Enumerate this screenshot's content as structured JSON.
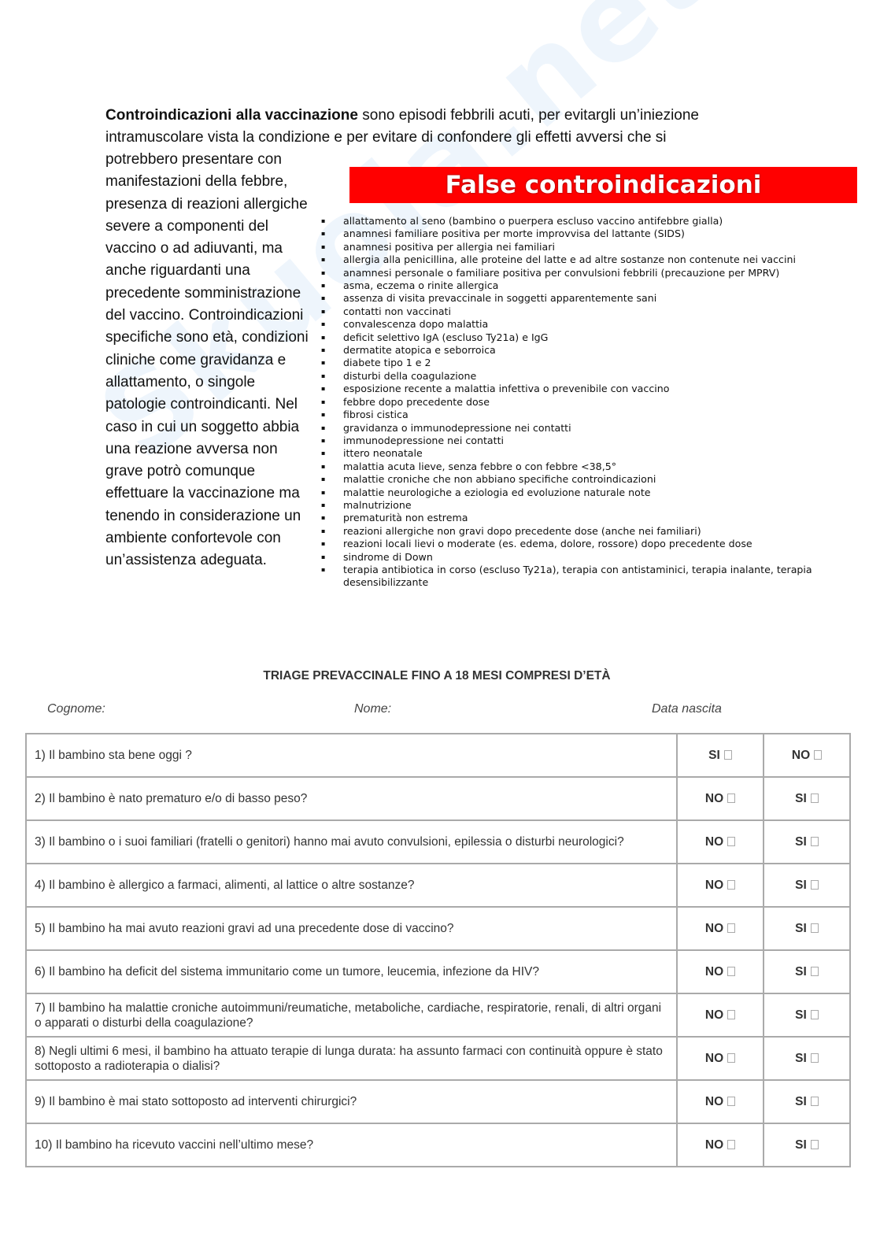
{
  "intro": {
    "bold": "Controindicazioni alla vaccinazione",
    "first_line_rest": " sono episodi febbrili acuti, per evitargli un’iniezione intramuscolare vista la condizione e per evitare di confondere gli effetti avversi che si",
    "column_text": "potrebbero presentare con manifestazioni della febbre, presenza di reazioni allergiche severe a componenti del vaccino o ad adiuvanti, ma anche riguardanti una precedente somministrazione del vaccino. Controindicazioni specifiche sono età, condizioni cliniche come gravidanza e allattamento, o singole patologie controindicanti. Nel caso in cui un soggetto abbia una reazione avversa non grave potrò comunque effettuare la vaccinazione ma tenendo in considerazione un ambiente confortevole con un’assistenza adeguata."
  },
  "false_contra": {
    "title": "False controindicazioni",
    "banner_color": "#ff0000",
    "items": [
      "allattamento al seno (bambino o puerpera escluso vaccino antifebbre gialla)",
      "anamnesi familiare positiva per morte improvvisa del lattante (SIDS)",
      "anamnesi positiva per allergia nei familiari",
      "allergia alla penicillina, alle proteine del latte e ad altre sostanze non contenute nei vaccini",
      "anamnesi personale o familiare positiva per convulsioni febbrili (precauzione per MPRV)",
      "asma, eczema o rinite allergica",
      "assenza di visita prevaccinale in soggetti apparentemente sani",
      "contatti non vaccinati",
      "convalescenza dopo malattia",
      "deficit selettivo IgA (escluso Ty21a) e IgG",
      "dermatite atopica e seborroica",
      "diabete tipo 1 e 2",
      "disturbi della coagulazione",
      "esposizione recente a malattia infettiva o prevenibile con vaccino",
      "febbre dopo precedente dose",
      "fibrosi cistica",
      "gravidanza o immunodepressione nei contatti",
      "immunodepressione nei contatti",
      "ittero neonatale",
      "malattia acuta lieve, senza febbre o con febbre <38,5°",
      "malattie croniche che non abbiano specifiche controindicazioni",
      "malattie neurologiche a eziologia ed evoluzione naturale note",
      "malnutrizione",
      "prematurità non estrema",
      "reazioni allergiche non gravi dopo precedente dose (anche nei familiari)",
      "reazioni locali lievi o moderate (es. edema, dolore, rossore) dopo precedente dose",
      "sindrome di Down",
      "terapia antibiotica in corso (escluso Ty21a), terapia con antistaminici, terapia inalante, terapia desensibilizzante"
    ]
  },
  "triage": {
    "title": "TRIAGE PREVACCINALE FINO A 18 MESI COMPRESI D’ETÀ",
    "cognome": "Cognome:",
    "nome": "Nome:",
    "data_nascita": "Data nascita",
    "rows": [
      {
        "q": "1) Il bambino sta bene oggi ?",
        "a1": "SI",
        "a2": "NO"
      },
      {
        "q": "2) Il bambino è nato prematuro e/o di basso peso?",
        "a1": "NO",
        "a2": "SI"
      },
      {
        "q": "3) Il bambino o i suoi familiari (fratelli o genitori) hanno mai avuto convulsioni, epilessia o disturbi neurologici?",
        "a1": "NO",
        "a2": "SI"
      },
      {
        "q": "4) Il bambino è allergico a farmaci, alimenti, al lattice o altre sostanze?",
        "a1": "NO",
        "a2": "SI"
      },
      {
        "q": "5) Il bambino ha mai avuto reazioni gravi ad una precedente dose di vaccino?",
        "a1": "NO",
        "a2": "SI"
      },
      {
        "q": "6) Il bambino ha deficit del sistema immunitario come un tumore, leucemia, infezione da HIV?",
        "a1": "NO",
        "a2": "SI"
      },
      {
        "q": "7) Il bambino ha malattie croniche autoimmuni/reumatiche, metaboliche, cardiache, respiratorie, renali, di altri organi o apparati o disturbi della coagulazione?",
        "a1": "NO",
        "a2": "SI"
      },
      {
        "q": "8) Negli ultimi 6 mesi, il bambino ha attuato terapie di lunga durata: ha assunto farmaci con continuità oppure è stato sottoposto a radioterapia o dialisi?",
        "a1": "NO",
        "a2": "SI"
      },
      {
        "q": "9) Il bambino è mai stato sottoposto ad interventi chirurgici?",
        "a1": "NO",
        "a2": "SI"
      },
      {
        "q": "10) Il bambino ha ricevuto vaccini nell’ultimo mese?",
        "a1": "NO",
        "a2": "SI"
      }
    ]
  },
  "watermark": "Skuola.net"
}
